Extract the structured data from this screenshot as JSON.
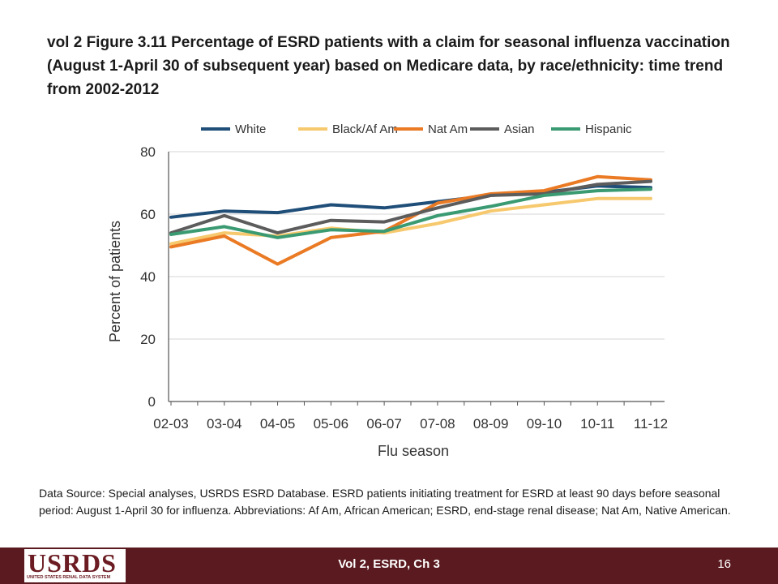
{
  "slide": {
    "title": "vol 2  Figure 3.11 Percentage of ESRD patients with a claim for seasonal influenza vaccination (August 1-April 30 of subsequent year) based on Medicare data, by race/ethnicity: time trend from 2002-2012",
    "source": "Data Source: Special analyses, USRDS ESRD Database. ESRD patients initiating treatment for ESRD at least 90 days before seasonal period: August 1-April 30 for influenza. Abbreviations: Af Am, African American; ESRD, end-stage renal disease; Nat Am, Native American."
  },
  "footer": {
    "logo_text": "USRDS",
    "logo_subtext": "UNITED STATES RENAL DATA SYSTEM",
    "center_text": "Vol 2, ESRD, Ch 3",
    "page_number": "16",
    "background_color": "#5a1a1f"
  },
  "chart_data": {
    "type": "line",
    "title": "",
    "xlabel": "Flu season",
    "ylabel": "Percent of patients",
    "categories": [
      "02-03",
      "03-04",
      "04-05",
      "05-06",
      "06-07",
      "07-08",
      "08-09",
      "09-10",
      "10-11",
      "11-12"
    ],
    "ylim": [
      0,
      80
    ],
    "yticks": [
      0,
      20,
      40,
      60,
      80
    ],
    "grid": true,
    "legend_position": "top",
    "series": [
      {
        "name": "White",
        "color": "#1f4e79",
        "values": [
          59,
          61,
          60.5,
          63,
          62,
          64,
          66,
          67,
          69,
          68.5
        ]
      },
      {
        "name": "Black/Af Am",
        "color": "#f7c96e",
        "values": [
          50.5,
          54,
          53,
          55.5,
          54,
          57,
          61,
          63,
          65,
          65
        ]
      },
      {
        "name": "Nat Am",
        "color": "#ea7a24",
        "values": [
          49.5,
          53,
          44,
          52.5,
          54.5,
          63.5,
          66.5,
          67.5,
          72,
          71
        ]
      },
      {
        "name": "Asian",
        "color": "#5c5c5c",
        "values": [
          54,
          59.5,
          54,
          58,
          57.5,
          62,
          66,
          66.5,
          69.5,
          70.5
        ]
      },
      {
        "name": "Hispanic",
        "color": "#3a9a72",
        "values": [
          53.5,
          56,
          52.5,
          55,
          54.5,
          59.5,
          62.5,
          66,
          67.5,
          68
        ]
      }
    ]
  }
}
